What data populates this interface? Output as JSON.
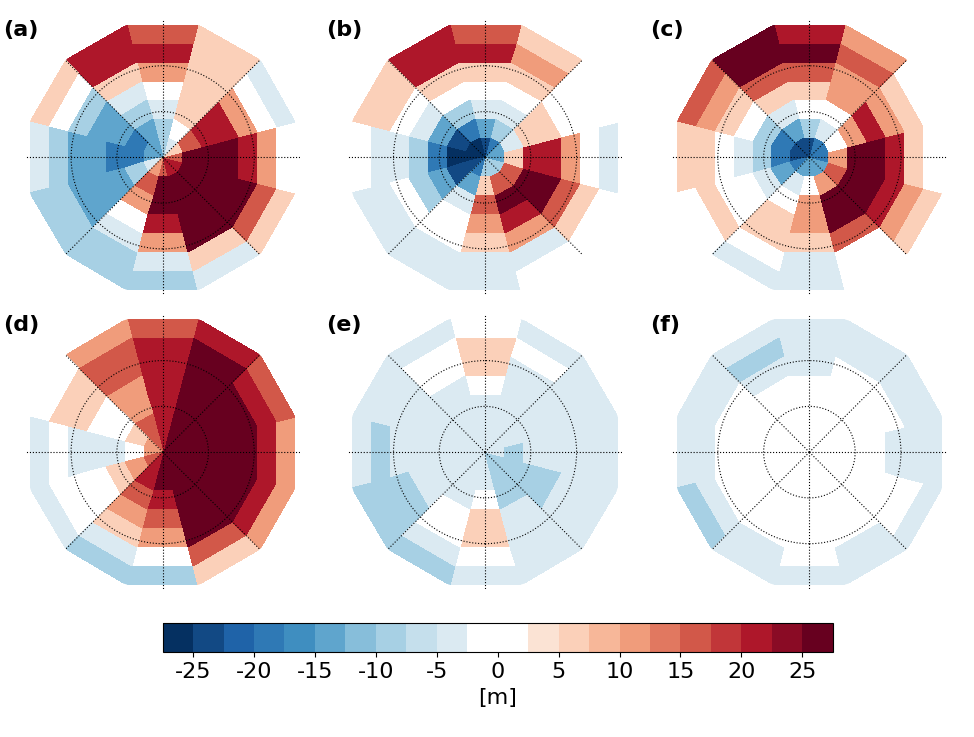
{
  "chart_data": [
    {
      "type": "heatmap",
      "title": "(a)",
      "lat": [
        25,
        35,
        45,
        55,
        65,
        75,
        85
      ],
      "lon": [
        0,
        30,
        60,
        90,
        120,
        150,
        180,
        210,
        240,
        270,
        300,
        330
      ],
      "values": [
        [
          -10,
          -5,
          5,
          0,
          -5,
          5,
          15,
          20,
          5,
          -5,
          -10,
          -10
        ],
        [
          -5,
          5,
          15,
          10,
          0,
          5,
          20,
          20,
          0,
          -10,
          -10,
          -10
        ],
        [
          10,
          25,
          25,
          20,
          10,
          5,
          10,
          5,
          -10,
          -15,
          -15,
          -5
        ],
        [
          20,
          27,
          27,
          27,
          20,
          5,
          0,
          -5,
          -15,
          -15,
          -15,
          0
        ],
        [
          25,
          27,
          27,
          27,
          20,
          5,
          -5,
          -10,
          -15,
          -20,
          -15,
          10
        ],
        [
          25,
          27,
          27,
          25,
          15,
          0,
          -10,
          -15,
          -20,
          -20,
          -10,
          15
        ],
        [
          15,
          20,
          20,
          15,
          5,
          -5,
          -10,
          -15,
          -15,
          -15,
          -5,
          10
        ]
      ]
    },
    {
      "type": "heatmap",
      "title": "(b)",
      "lat": [
        25,
        35,
        45,
        55,
        65,
        75,
        85
      ],
      "lon": [
        0,
        30,
        60,
        90,
        120,
        150,
        180,
        210,
        240,
        270,
        300,
        330
      ],
      "values": [
        [
          -5,
          0,
          0,
          -5,
          0,
          5,
          15,
          20,
          5,
          0,
          -5,
          -5
        ],
        [
          -5,
          -5,
          5,
          0,
          0,
          10,
          20,
          20,
          5,
          -5,
          -5,
          -5
        ],
        [
          5,
          10,
          15,
          10,
          0,
          5,
          5,
          5,
          0,
          -5,
          0,
          0
        ],
        [
          10,
          20,
          25,
          20,
          5,
          0,
          0,
          0,
          -5,
          -10,
          -10,
          0
        ],
        [
          15,
          25,
          25,
          20,
          5,
          -5,
          -5,
          -10,
          -15,
          -20,
          -15,
          -5
        ],
        [
          5,
          15,
          15,
          5,
          -5,
          -10,
          -15,
          -20,
          -25,
          -27,
          -25,
          -15
        ],
        [
          -10,
          -10,
          -10,
          -15,
          -15,
          -20,
          -25,
          -27,
          -27,
          -27,
          -25,
          -20
        ]
      ]
    },
    {
      "type": "heatmap",
      "title": "(c)",
      "lat": [
        25,
        35,
        45,
        55,
        65,
        75,
        85
      ],
      "lon": [
        0,
        30,
        60,
        90,
        120,
        150,
        180,
        210,
        240,
        270,
        300,
        330
      ],
      "values": [
        [
          -5,
          0,
          5,
          0,
          0,
          10,
          20,
          25,
          15,
          5,
          0,
          -5
        ],
        [
          -5,
          0,
          10,
          5,
          5,
          15,
          25,
          25,
          10,
          5,
          5,
          0
        ],
        [
          5,
          15,
          20,
          20,
          10,
          10,
          15,
          15,
          5,
          0,
          0,
          5
        ],
        [
          10,
          25,
          27,
          27,
          20,
          10,
          5,
          5,
          0,
          -5,
          0,
          5
        ],
        [
          10,
          25,
          27,
          25,
          10,
          0,
          0,
          -5,
          -10,
          -10,
          -5,
          0
        ],
        [
          0,
          10,
          15,
          10,
          0,
          -5,
          -10,
          -15,
          -20,
          -20,
          -15,
          -5
        ],
        [
          -15,
          -15,
          -15,
          -20,
          -20,
          -20,
          -25,
          -25,
          -25,
          -25,
          -20,
          -15
        ]
      ]
    },
    {
      "type": "heatmap",
      "title": "(d)",
      "lat": [
        25,
        35,
        45,
        55,
        65,
        75,
        85
      ],
      "lon": [
        0,
        30,
        60,
        90,
        120,
        150,
        180,
        210,
        240,
        270,
        300,
        330
      ],
      "values": [
        [
          -10,
          5,
          10,
          10,
          15,
          20,
          15,
          10,
          0,
          -5,
          -5,
          -10
        ],
        [
          0,
          15,
          20,
          20,
          20,
          25,
          20,
          15,
          5,
          0,
          0,
          -5
        ],
        [
          10,
          25,
          27,
          27,
          25,
          25,
          20,
          15,
          5,
          -5,
          0,
          5
        ],
        [
          15,
          27,
          27,
          27,
          27,
          25,
          20,
          10,
          0,
          -5,
          0,
          10
        ],
        [
          20,
          27,
          27,
          27,
          27,
          25,
          20,
          10,
          0,
          -5,
          5,
          15
        ],
        [
          25,
          27,
          27,
          27,
          27,
          25,
          20,
          15,
          5,
          0,
          10,
          20
        ],
        [
          25,
          27,
          27,
          27,
          27,
          25,
          20,
          15,
          10,
          10,
          15,
          20
        ]
      ]
    },
    {
      "type": "heatmap",
      "title": "(e)",
      "lat": [
        25,
        35,
        45,
        55,
        65,
        75,
        85
      ],
      "lon": [
        0,
        30,
        60,
        90,
        120,
        150,
        180,
        210,
        240,
        270,
        300,
        330
      ],
      "values": [
        [
          -5,
          -5,
          -5,
          -5,
          -5,
          -5,
          0,
          -5,
          -5,
          -5,
          -10,
          -10
        ],
        [
          0,
          -5,
          -5,
          -5,
          -5,
          0,
          5,
          0,
          -5,
          -10,
          -10,
          -5
        ],
        [
          5,
          -5,
          -5,
          -5,
          -5,
          -5,
          5,
          0,
          -5,
          -5,
          -10,
          0
        ],
        [
          5,
          -5,
          -10,
          -5,
          -5,
          -5,
          0,
          -5,
          -5,
          -5,
          -5,
          0
        ],
        [
          0,
          -10,
          -10,
          -5,
          -5,
          -5,
          -5,
          -5,
          -5,
          -5,
          -5,
          -5
        ],
        [
          -5,
          -10,
          -10,
          -10,
          -5,
          -5,
          -5,
          -5,
          -5,
          -5,
          -5,
          -5
        ],
        [
          -5,
          -10,
          -10,
          -5,
          -5,
          -5,
          -5,
          -5,
          -5,
          -5,
          -5,
          -5
        ]
      ]
    },
    {
      "type": "heatmap",
      "title": "(f)",
      "lat": [
        25,
        35,
        45,
        55,
        65,
        75,
        85
      ],
      "lon": [
        0,
        30,
        60,
        90,
        120,
        150,
        180,
        210,
        240,
        270,
        300,
        330
      ],
      "values": [
        [
          -5,
          -5,
          -5,
          -5,
          -5,
          -5,
          -5,
          -5,
          -5,
          -5,
          -10,
          -5
        ],
        [
          0,
          -5,
          0,
          -5,
          -5,
          -5,
          -5,
          -10,
          -5,
          -5,
          -5,
          -5
        ],
        [
          0,
          0,
          0,
          -5,
          0,
          0,
          -5,
          -5,
          0,
          0,
          0,
          0
        ],
        [
          0,
          0,
          0,
          0,
          0,
          0,
          0,
          0,
          0,
          0,
          0,
          0
        ],
        [
          0,
          0,
          0,
          0,
          0,
          0,
          0,
          0,
          0,
          0,
          0,
          0
        ],
        [
          0,
          0,
          0,
          0,
          0,
          0,
          0,
          0,
          0,
          0,
          0,
          0
        ],
        [
          0,
          0,
          0,
          0,
          0,
          0,
          0,
          0,
          0,
          0,
          0,
          0
        ]
      ]
    }
  ],
  "colorbar": {
    "label": "[m]",
    "range": [
      -27.5,
      27.5
    ],
    "levels": [
      -27.5,
      -25,
      -22.5,
      -20,
      -17.5,
      -15,
      -12.5,
      -10,
      -7.5,
      -5,
      -2.5,
      0,
      2.5,
      5,
      7.5,
      10,
      12.5,
      15,
      17.5,
      20,
      22.5,
      25,
      27.5
    ],
    "ticks": [
      -25,
      -20,
      -15,
      -10,
      -5,
      0,
      5,
      10,
      15,
      20,
      25
    ]
  }
}
